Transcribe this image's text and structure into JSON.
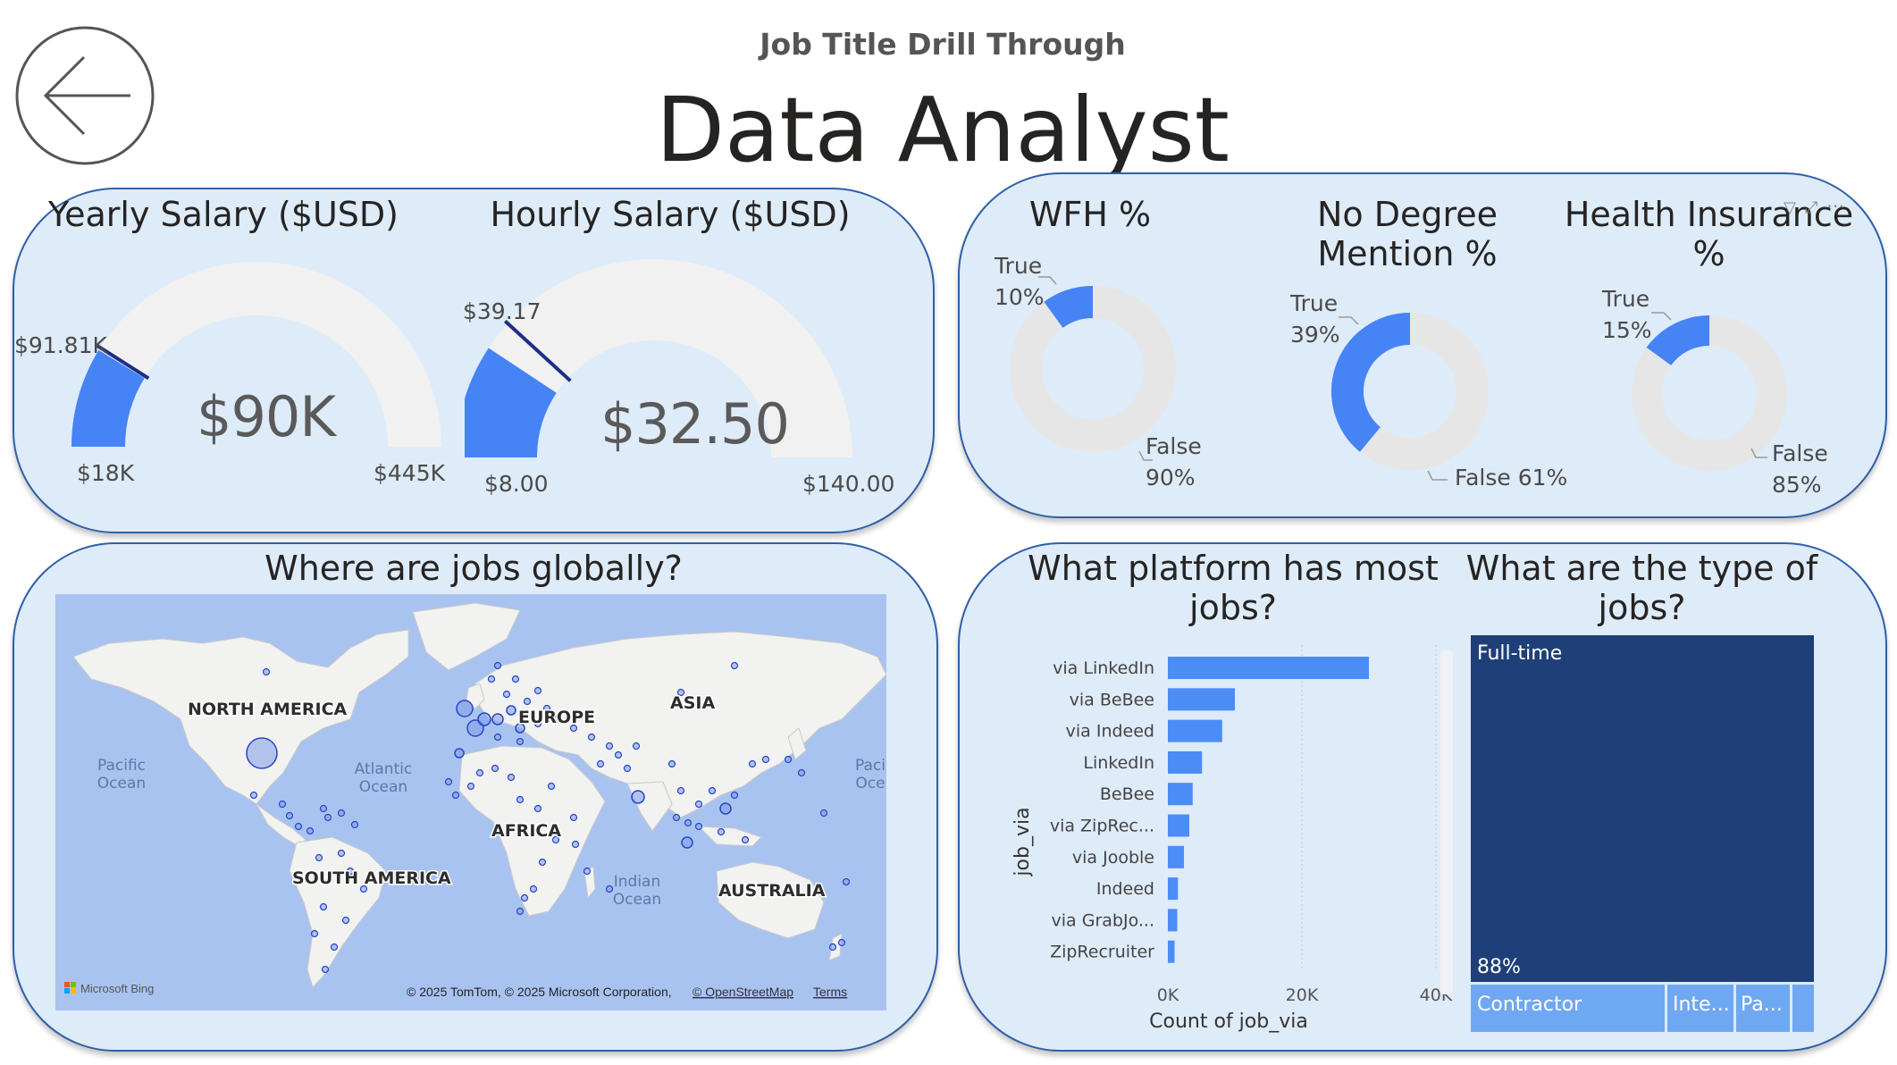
{
  "header": {
    "subtitle": "Job Title Drill Through",
    "title": "Data Analyst",
    "back_icon": "arrow-left-icon"
  },
  "yearly": {
    "title": "Yearly Salary ($USD)",
    "value": "$90K",
    "min": "$18K",
    "max": "$445K",
    "target": "$91.81K",
    "fill": 0.175,
    "target_frac": 0.18
  },
  "hourly": {
    "title": "Hourly Salary ($USD)",
    "value": "$32.50",
    "min": "$8.00",
    "max": "$140.00",
    "target": "$39.17",
    "fill": 0.186,
    "target_frac": 0.236
  },
  "wfh": {
    "title": "WFH %",
    "true_label": "True",
    "true_pct": "10%",
    "false_label": "False",
    "false_pct": "90%",
    "true_value": 0.1
  },
  "degree": {
    "title_line1": "No Degree",
    "title_line2": "Mention %",
    "true_label": "True",
    "true_pct": "39%",
    "false_text": "False 61%",
    "true_value": 0.39
  },
  "health": {
    "title_line1": "Health Insurance",
    "title_line2": "%",
    "true_label": "True",
    "true_pct": "15%",
    "false_label": "False",
    "false_pct": "85%",
    "true_value": 0.15
  },
  "map": {
    "title": "Where are jobs globally?",
    "continents": [
      "NORTH AMERICA",
      "EUROPE",
      "ASIA",
      "AFRICA",
      "SOUTH AMERICA",
      "AUSTRALIA"
    ],
    "oceans": {
      "pacific_l1": "Pacific",
      "pacific_l2": "Ocean",
      "atlantic_l1": "Atlantic",
      "atlantic_l2": "Ocean",
      "indian_l1": "Indian",
      "indian_l2": "Ocean",
      "pacific_r1": "Paci",
      "pacific_r2": "Oce"
    },
    "logo_text": "Microsoft Bing",
    "attribution": "© 2025 TomTom, © 2025 Microsoft Corporation,",
    "osm": "© OpenStreetMap",
    "terms": "Terms"
  },
  "platform": {
    "title_line1": "What platform has most",
    "title_line2": "jobs?",
    "y_axis_label": "job_via",
    "x_axis_label": "Count of job_via"
  },
  "types": {
    "title_line1": "What are the type of",
    "title_line2": "jobs?",
    "fulltime": "Full-time",
    "fulltime_pct": "88%",
    "contractor": "Contractor",
    "intern": "Inte...",
    "parttime": "Pa...",
    "colors": {
      "dark": "#1f3f78",
      "light": "#6fa8f2"
    }
  },
  "chart_data": {
    "type": "bar",
    "orientation": "horizontal",
    "categories": [
      "via LinkedIn",
      "via BeBee",
      "via Indeed",
      "LinkedIn",
      "BeBee",
      "via ZipRec...",
      "via Jooble",
      "Indeed",
      "via GrabJo...",
      "ZipRecruiter"
    ],
    "values": [
      30000,
      10000,
      8100,
      5100,
      3700,
      3200,
      2400,
      1500,
      1400,
      1000
    ],
    "xlabel": "Count of job_via",
    "ylabel": "job_via",
    "xticks": [
      "0K",
      "20K",
      "40K"
    ],
    "xlim": [
      0,
      40000
    ],
    "grid": true,
    "color": "#4c8cf5"
  }
}
